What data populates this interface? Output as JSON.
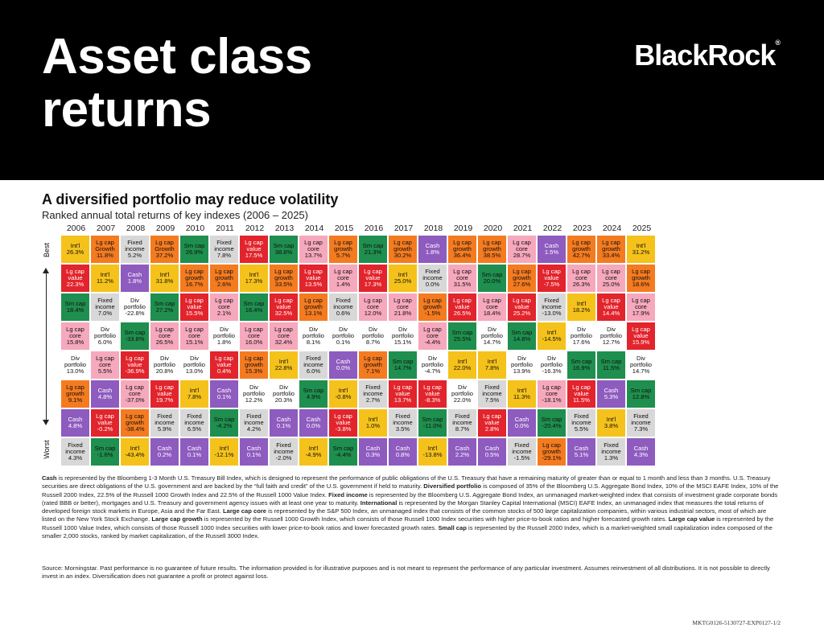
{
  "header": {
    "title_line1": "Asset class",
    "title_line2": "returns",
    "brand": "BlackRock",
    "brand_mark": "®"
  },
  "subtitle": "A diversified portfolio may reduce volatility",
  "subtitle2": "Ranked annual total returns of key indexes (2006 – 2025)",
  "axis": {
    "best": "Best",
    "worst": "Worst"
  },
  "colors": {
    "Int'l": "#f5c21b",
    "Lg cap Growth": "#f47b20",
    "Lg cap growth": "#f47b20",
    "Fixed income": "#d8d8d8",
    "Sm cap": "#1e8f4e",
    "Lg cap value": "#e2242c",
    "Lg cap core": "#f6a8bd",
    "Div portfolio": "#ffffff",
    "Cash": "#8e5bbf"
  },
  "text_colors": {
    "Int'l": "#111111",
    "Lg cap Growth": "#111111",
    "Lg cap growth": "#111111",
    "Fixed income": "#111111",
    "Sm cap": "#111111",
    "Lg cap value": "#ffffff",
    "Lg cap core": "#111111",
    "Div portfolio": "#111111",
    "Cash": "#ffffff"
  },
  "chart_data": {
    "type": "table",
    "title": "A diversified portfolio may reduce volatility",
    "subtitle": "Ranked annual total returns of key indexes (2006 – 2025)",
    "years": [
      "2006",
      "2007",
      "2008",
      "2009",
      "2010",
      "2011",
      "2012",
      "2013",
      "2014",
      "2015",
      "2016",
      "2017",
      "2018",
      "2019",
      "2020",
      "2021",
      "2022",
      "2023",
      "2024",
      "2025"
    ],
    "columns": [
      [
        [
          "Int'l",
          "26.3%"
        ],
        [
          "Lg cap value",
          "22.3%"
        ],
        [
          "Sm cap",
          "18.4%"
        ],
        [
          "Lg cap core",
          "15.8%"
        ],
        [
          "Div portfolio",
          "13.0%"
        ],
        [
          "Lg cap growth",
          "9.1%"
        ],
        [
          "Cash",
          "4.8%"
        ],
        [
          "Fixed income",
          "4.3%"
        ]
      ],
      [
        [
          "Lg cap Growth",
          "11.8%"
        ],
        [
          "Int'l",
          "11.2%"
        ],
        [
          "Fixed income",
          "7.0%"
        ],
        [
          "Div portfolio",
          "6.0%"
        ],
        [
          "Lg cap core",
          "5.5%"
        ],
        [
          "Cash",
          "4.8%"
        ],
        [
          "Lg cap value",
          "-0.2%"
        ],
        [
          "Sm cap",
          "-1.6%"
        ]
      ],
      [
        [
          "Fixed income",
          "5.2%"
        ],
        [
          "Cash",
          "1.8%"
        ],
        [
          "Div portfolio",
          "-22.8%"
        ],
        [
          "Sm cap",
          "-33.8%"
        ],
        [
          "Lg cap value",
          "-36.9%"
        ],
        [
          "Lg cap core",
          "-37.0%"
        ],
        [
          "Lg cap growth",
          "-38.4%"
        ],
        [
          "Int'l",
          "-43.4%"
        ]
      ],
      [
        [
          "Lg cap Growth",
          "37.2%"
        ],
        [
          "Int'l",
          "31.8%"
        ],
        [
          "Sm cap",
          "27.2%"
        ],
        [
          "Lg cap core",
          "26.5%"
        ],
        [
          "Div portfolio",
          "20.8%"
        ],
        [
          "Lg cap value",
          "19.7%"
        ],
        [
          "Fixed income",
          "5.9%"
        ],
        [
          "Cash",
          "0.2%"
        ]
      ],
      [
        [
          "Sm cap",
          "26.9%"
        ],
        [
          "Lg cap growth",
          "16.7%"
        ],
        [
          "Lg cap value",
          "15.5%"
        ],
        [
          "Lg cap core",
          "15.1%"
        ],
        [
          "Div portfolio",
          "13.0%"
        ],
        [
          "Int'l",
          "7.8%"
        ],
        [
          "Fixed income",
          "6.5%"
        ],
        [
          "Cash",
          "0.1%"
        ]
      ],
      [
        [
          "Fixed income",
          "7.8%"
        ],
        [
          "Lg cap growth",
          "2.6%"
        ],
        [
          "Lg cap core",
          "2.1%"
        ],
        [
          "Div portfolio",
          "1.8%"
        ],
        [
          "Lg cap value",
          "0.4%"
        ],
        [
          "Cash",
          "0.1%"
        ],
        [
          "Sm cap",
          "-4.2%"
        ],
        [
          "Int'l",
          "-12.1%"
        ]
      ],
      [
        [
          "Lg cap value",
          "17.5%"
        ],
        [
          "Int'l",
          "17.3%"
        ],
        [
          "Sm cap",
          "16.4%"
        ],
        [
          "Lg cap core",
          "16.0%"
        ],
        [
          "Lg cap growth",
          "15.3%"
        ],
        [
          "Div portfolio",
          "12.2%"
        ],
        [
          "Fixed income",
          "4.2%"
        ],
        [
          "Cash",
          "0.1%"
        ]
      ],
      [
        [
          "Sm cap",
          "38.8%"
        ],
        [
          "Lg cap growth",
          "33.5%"
        ],
        [
          "Lg cap value",
          "32.5%"
        ],
        [
          "Lg cap core",
          "32.4%"
        ],
        [
          "Int'l",
          "22.8%"
        ],
        [
          "Div portfolio",
          "20.3%"
        ],
        [
          "Cash",
          "0.1%"
        ],
        [
          "Fixed income",
          "-2.0%"
        ]
      ],
      [
        [
          "Lg cap core",
          "13.7%"
        ],
        [
          "Lg cap value",
          "13.5%"
        ],
        [
          "Lg cap growth",
          "13.1%"
        ],
        [
          "Div portfolio",
          "8.1%"
        ],
        [
          "Fixed income",
          "6.0%"
        ],
        [
          "Sm cap",
          "4.9%"
        ],
        [
          "Cash",
          "0.0%"
        ],
        [
          "Int'l",
          "-4.9%"
        ]
      ],
      [
        [
          "Lg cap growth",
          "5.7%"
        ],
        [
          "Lg cap core",
          "1.4%"
        ],
        [
          "Fixed income",
          "0.6%"
        ],
        [
          "Div portfolio",
          "0.1%"
        ],
        [
          "Cash",
          "0.0%"
        ],
        [
          "Int'l",
          "-0.8%"
        ],
        [
          "Lg cap value",
          "-3.8%"
        ],
        [
          "Sm cap",
          "-4.4%"
        ]
      ],
      [
        [
          "Sm cap",
          "21.3%"
        ],
        [
          "Lg cap value",
          "17.3%"
        ],
        [
          "Lg cap core",
          "12.0%"
        ],
        [
          "Div portfolio",
          "8.7%"
        ],
        [
          "Lg cap growth",
          "7.1%"
        ],
        [
          "Fixed income",
          "2.7%"
        ],
        [
          "Int'l",
          "1.0%"
        ],
        [
          "Cash",
          "0.3%"
        ]
      ],
      [
        [
          "Lg cap growth",
          "30.2%"
        ],
        [
          "Int'l",
          "25.0%"
        ],
        [
          "Lg cap core",
          "21.8%"
        ],
        [
          "Div portfolio",
          "15.1%"
        ],
        [
          "Sm cap",
          "14.7%"
        ],
        [
          "Lg cap value",
          "13.7%"
        ],
        [
          "Fixed income",
          "3.5%"
        ],
        [
          "Cash",
          "0.8%"
        ]
      ],
      [
        [
          "Cash",
          "1.8%"
        ],
        [
          "Fixed income",
          "0.0%"
        ],
        [
          "Lg cap growth",
          "-1.5%"
        ],
        [
          "Lg cap core",
          "-4.4%"
        ],
        [
          "Div portfolio",
          "-4.7%"
        ],
        [
          "Lg cap value",
          "-8.3%"
        ],
        [
          "Sm cap",
          "-11.0%"
        ],
        [
          "Int'l",
          "-13.8%"
        ]
      ],
      [
        [
          "Lg cap growth",
          "36.4%"
        ],
        [
          "Lg cap core",
          "31.5%"
        ],
        [
          "Lg cap value",
          "26.5%"
        ],
        [
          "Sm cap",
          "25.5%"
        ],
        [
          "Int'l",
          "22.0%"
        ],
        [
          "Div portfolio",
          "22.0%"
        ],
        [
          "Fixed income",
          "8.7%"
        ],
        [
          "Cash",
          "2.2%"
        ]
      ],
      [
        [
          "Lg cap growth",
          "38.5%"
        ],
        [
          "Sm cap",
          "20.0%"
        ],
        [
          "Lg cap core",
          "18.4%"
        ],
        [
          "Div portfolio",
          "14.7%"
        ],
        [
          "Int'l",
          "7.8%"
        ],
        [
          "Fixed income",
          "7.5%"
        ],
        [
          "Lg cap value",
          "2.8%"
        ],
        [
          "Cash",
          "0.5%"
        ]
      ],
      [
        [
          "Lg cap core",
          "28.7%"
        ],
        [
          "Lg cap growth",
          "27.6%"
        ],
        [
          "Lg cap value",
          "25.2%"
        ],
        [
          "Sm cap",
          "14.8%"
        ],
        [
          "Div portfolio",
          "13.9%"
        ],
        [
          "Int'l",
          "11.3%"
        ],
        [
          "Cash",
          "0.0%"
        ],
        [
          "Fixed income",
          "-1.5%"
        ]
      ],
      [
        [
          "Cash",
          "1.5%"
        ],
        [
          "Lg cap value",
          "-7.5%"
        ],
        [
          "Fixed income",
          "-13.0%"
        ],
        [
          "Int'l",
          "-14.5%"
        ],
        [
          "Div portfolio",
          "-16.3%"
        ],
        [
          "Lg cap core",
          "-18.1%"
        ],
        [
          "Sm cap",
          "-20.4%"
        ],
        [
          "Lg cap growth",
          "-29.1%"
        ]
      ],
      [
        [
          "Lg cap growth",
          "42.7%"
        ],
        [
          "Lg cap core",
          "26.3%"
        ],
        [
          "Int'l",
          "18.2%"
        ],
        [
          "Div portfolio",
          "17.6%"
        ],
        [
          "Sm cap",
          "16.9%"
        ],
        [
          "Lg cap value",
          "11.5%"
        ],
        [
          "Fixed income",
          "5.5%"
        ],
        [
          "Cash",
          "5.1%"
        ]
      ],
      [
        [
          "Lg cap growth",
          "33.4%"
        ],
        [
          "Lg cap core",
          "25.0%"
        ],
        [
          "Lg cap value",
          "14.4%"
        ],
        [
          "Div portfolio",
          "12.7%"
        ],
        [
          "Sm cap",
          "11.5%"
        ],
        [
          "Cash",
          "5.3%"
        ],
        [
          "Int'l",
          "3.8%"
        ],
        [
          "Fixed income",
          "1.3%"
        ]
      ],
      [
        [
          "Int'l",
          "31.2%"
        ],
        [
          "Lg cap growth",
          "18.6%"
        ],
        [
          "Lg cap core",
          "17.9%"
        ],
        [
          "Lg cap value",
          "15.9%"
        ],
        [
          "Div portfolio",
          "14.7%"
        ],
        [
          "Sm cap",
          "12.8%"
        ],
        [
          "Fixed income",
          "7.3%"
        ],
        [
          "Cash",
          "4.3%"
        ]
      ]
    ]
  },
  "footnote": [
    {
      "b": "Cash",
      "t": " is represented by the Bloomberg 1-3 Month U.S. Treasury Bill Index, which is designed to represent the performance of public obligations of the U.S. Treasury that have a remaining maturity of greater than or equal to 1 month and less than 3 months. U.S. Treasury securities are direct obligations of the U.S. government and are backed by the “full faith and credit” of the U.S. government if held to maturity. "
    },
    {
      "b": "Diversified portfolio",
      "t": " is composed of 35% of the Bloomberg U.S. Aggregate Bond Index, 10% of the MSCI EAFE Index, 10% of the Russell 2000 Index, 22.5% of the Russell 1000 Growth Index and 22.5% of the Russell 1000 Value Index. "
    },
    {
      "b": "Fixed income",
      "t": " is represented by the Bloomberg U.S. Aggregate Bond Index, an unmanaged market-weighted index that consists of investment grade corporate bonds (rated BBB or better), mortgages and U.S. Treasury and government agency issues with at least one year to maturity. "
    },
    {
      "b": "International",
      "t": " is represented by the Morgan Stanley Capital International (MSCI) EAFE Index, an unmanaged index that measures the total returns of developed foreign stock markets in Europe, Asia and the Far East. "
    },
    {
      "b": "Large cap core",
      "t": " is represented by the S&P 500 Index, an unmanaged index that consists of the common stocks of 500 large capitalization companies, within various industrial sectors, most of which are listed on the New York Stock Exchange. "
    },
    {
      "b": "Large cap growth",
      "t": " is represented  by the Russell 1000 Growth Index, which consists of those Russell 1000 Index securities with higher price-to-book ratios and higher forecasted growth rates. "
    },
    {
      "b": "Large cap value",
      "t": " is represented by the Russell 1000 Value Index, which consists of those Russell 1000 Index securities with lower price-to-book ratios and lower forecasted growth rates. "
    },
    {
      "b": "Small cap",
      "t": " is represented by the Russell 2000 Index, which is a market-weighted small capitalization index composed of the smaller 2,000 stocks, ranked by market capitalization, of the Russell 3000 Index."
    }
  ],
  "source": "Source: Morningstar. Past performance is no guarantee of future results. The information provided is for illustrative purposes and is not meant to represent the performance of any particular investment. Assumes reinvestment of all distributions. It is not possible to directly  invest in an index. Diversification does not guarantee a profit or protect against loss.",
  "code": "MKTG0126-5130727-EXP0127-1/2"
}
